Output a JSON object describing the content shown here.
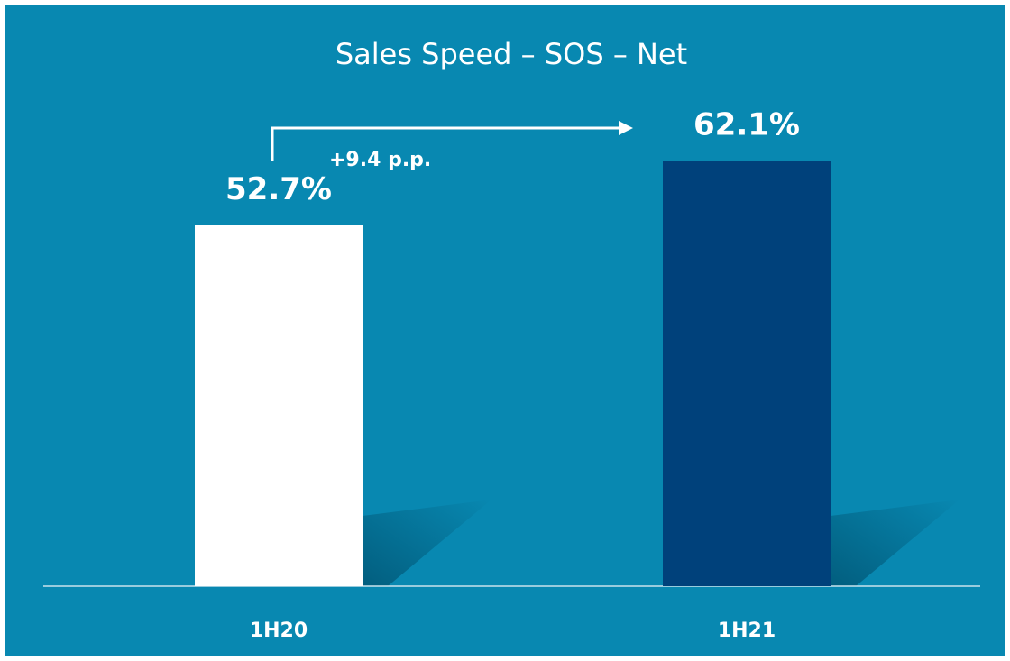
{
  "chart_data": {
    "type": "bar",
    "title": "Sales Speed – SOS – Net",
    "categories": [
      "1H20",
      "1H21"
    ],
    "values": [
      52.7,
      62.1
    ],
    "value_labels": [
      "52.7%",
      "62.1%"
    ],
    "colors": [
      "#ffffff",
      "#00417b"
    ],
    "annotation": "+9.4 p.p."
  }
}
